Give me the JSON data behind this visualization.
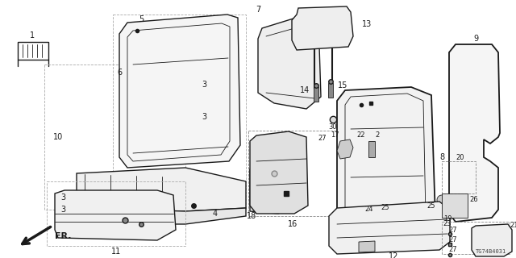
{
  "bg_color": "#ffffff",
  "line_color": "#1a1a1a",
  "diagram_id": "TG74B4031",
  "fig_w": 6.4,
  "fig_h": 3.2,
  "dpi": 100
}
